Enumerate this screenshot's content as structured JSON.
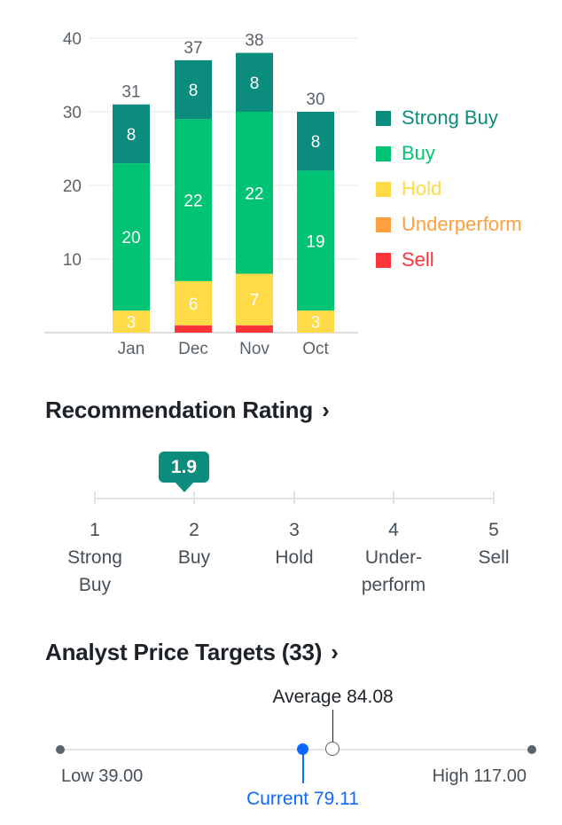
{
  "chart_data": {
    "type": "bar",
    "stacked": true,
    "categories": [
      "Jan",
      "Dec",
      "Nov",
      "Oct"
    ],
    "series": [
      {
        "name": "Strong Buy",
        "color": "#0b8c7d",
        "values": [
          8,
          8,
          8,
          8
        ]
      },
      {
        "name": "Buy",
        "color": "#00c473",
        "values": [
          20,
          22,
          22,
          19
        ]
      },
      {
        "name": "Hold",
        "color": "#ffdb47",
        "values": [
          3,
          6,
          7,
          3
        ]
      },
      {
        "name": "Underperform",
        "color": "#ff9f40",
        "values": [
          0,
          0,
          0,
          0
        ]
      },
      {
        "name": "Sell",
        "color": "#ff333a",
        "values": [
          0,
          1,
          1,
          0
        ]
      }
    ],
    "totals": [
      "31",
      "37",
      "38",
      "30"
    ],
    "yticks": [
      "10",
      "20",
      "30",
      "40"
    ],
    "ylim": [
      0,
      40
    ],
    "grid": true,
    "legend_position": "right"
  },
  "legend": {
    "items": [
      {
        "label": "Strong Buy",
        "color": "#0b8c7d"
      },
      {
        "label": "Buy",
        "color": "#00c473"
      },
      {
        "label": "Hold",
        "color": "#ffdb47"
      },
      {
        "label": "Underperform",
        "color": "#ff9f40"
      },
      {
        "label": "Sell",
        "color": "#ff333a"
      }
    ]
  },
  "recommendation": {
    "title": "Recommendation Rating",
    "chevron": "›",
    "value": "1.9",
    "scale": [
      {
        "num": "1",
        "line1": "Strong",
        "line2": "Buy"
      },
      {
        "num": "2",
        "line1": "Buy",
        "line2": ""
      },
      {
        "num": "3",
        "line1": "Hold",
        "line2": ""
      },
      {
        "num": "4",
        "line1": "Under-",
        "line2": "perform"
      },
      {
        "num": "5",
        "line1": "Sell",
        "line2": ""
      }
    ]
  },
  "price_targets": {
    "title": "Analyst Price Targets (33)",
    "chevron": "›",
    "low_label": "Low 39.00",
    "high_label": "High 117.00",
    "average_label": "Average 84.08",
    "current_label": "Current 79.11",
    "low": 39.0,
    "high": 117.0,
    "average": 84.08,
    "current": 79.11,
    "current_color": "#0f69ff"
  }
}
